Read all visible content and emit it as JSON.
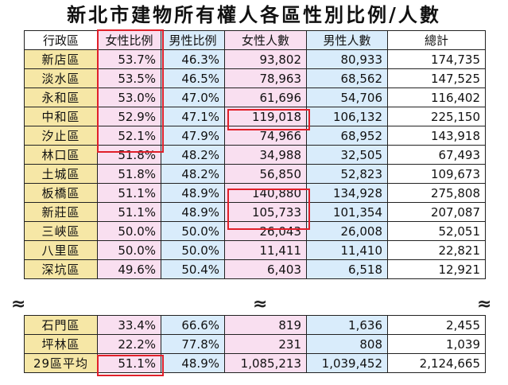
{
  "title": "新北市建物所有權人各區性別比例/人數",
  "headers": [
    "行政區",
    "女性比例",
    "男性比例",
    "女性人數",
    "男性人數",
    "總計"
  ],
  "rows_top": [
    {
      "district": "新店區",
      "female_pct": "53.7%",
      "male_pct": "46.3%",
      "female_n": "93,802",
      "male_n": "80,933",
      "total": "174,735"
    },
    {
      "district": "淡水區",
      "female_pct": "53.5%",
      "male_pct": "46.5%",
      "female_n": "78,963",
      "male_n": "68,562",
      "total": "147,525"
    },
    {
      "district": "永和區",
      "female_pct": "53.0%",
      "male_pct": "47.0%",
      "female_n": "61,696",
      "male_n": "54,706",
      "total": "116,402"
    },
    {
      "district": "中和區",
      "female_pct": "52.9%",
      "male_pct": "47.1%",
      "female_n": "119,018",
      "male_n": "106,132",
      "total": "225,150"
    },
    {
      "district": "汐止區",
      "female_pct": "52.1%",
      "male_pct": "47.9%",
      "female_n": "74,966",
      "male_n": "68,952",
      "total": "143,918"
    },
    {
      "district": "林口區",
      "female_pct": "51.8%",
      "male_pct": "48.2%",
      "female_n": "34,988",
      "male_n": "32,505",
      "total": "67,493"
    },
    {
      "district": "土城區",
      "female_pct": "51.8%",
      "male_pct": "48.2%",
      "female_n": "56,850",
      "male_n": "52,823",
      "total": "109,673"
    },
    {
      "district": "板橋區",
      "female_pct": "51.1%",
      "male_pct": "48.9%",
      "female_n": "140,880",
      "male_n": "134,928",
      "total": "275,808"
    },
    {
      "district": "新莊區",
      "female_pct": "51.1%",
      "male_pct": "48.9%",
      "female_n": "105,733",
      "male_n": "101,354",
      "total": "207,087"
    },
    {
      "district": "三峽區",
      "female_pct": "50.0%",
      "male_pct": "50.0%",
      "female_n": "26,043",
      "male_n": "26,008",
      "total": "52,051"
    },
    {
      "district": "八里區",
      "female_pct": "50.0%",
      "male_pct": "50.0%",
      "female_n": "11,411",
      "male_n": "11,410",
      "total": "22,821"
    },
    {
      "district": "深坑區",
      "female_pct": "49.6%",
      "male_pct": "50.4%",
      "female_n": "6,403",
      "male_n": "6,518",
      "total": "12,921"
    }
  ],
  "break_glyph": "≈",
  "rows_bottom": [
    {
      "district": "石門區",
      "female_pct": "33.4%",
      "male_pct": "66.6%",
      "female_n": "819",
      "male_n": "1,636",
      "total": "2,455"
    },
    {
      "district": "坪林區",
      "female_pct": "22.2%",
      "male_pct": "77.8%",
      "female_n": "231",
      "male_n": "808",
      "total": "1,039"
    },
    {
      "district": "29區平均",
      "female_pct": "51.1%",
      "male_pct": "48.9%",
      "female_n": "1,085,213",
      "male_n": "1,039,452",
      "total": "2,124,665"
    }
  ],
  "colors": {
    "name_bg": "#f6e7a6",
    "female_bg": "#f9dff0",
    "male_bg": "#d9ecfb",
    "highlight": "#e0202a"
  }
}
